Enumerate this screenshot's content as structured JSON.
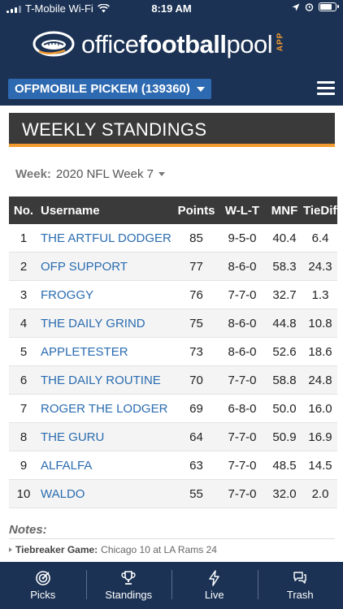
{
  "status": {
    "carrier": "T-Mobile Wi-Fi",
    "time": "8:19 AM",
    "battery_level": 0.85
  },
  "header": {
    "logo_prefix": "office",
    "logo_bold": "football",
    "logo_suffix": "pool",
    "logo_badge": "APP",
    "pool_selector": "OFPMOBILE PICKEM (139360)",
    "menu_icon": "hamburger-icon"
  },
  "section_title": "WEEKLY STANDINGS",
  "week_filter": {
    "label": "Week:",
    "value": "2020 NFL Week 7"
  },
  "table": {
    "headers": {
      "no": "No.",
      "username": "Username",
      "points": "Points",
      "wlt": "W-L-T",
      "mnf": "MNF",
      "tie": "TieDiff"
    },
    "rows": [
      {
        "no": "1",
        "username": "THE ARTFUL DODGER",
        "points": "85",
        "wlt": "9-5-0",
        "mnf": "40.4",
        "tie": "6.4"
      },
      {
        "no": "2",
        "username": "OFP SUPPORT",
        "points": "77",
        "wlt": "8-6-0",
        "mnf": "58.3",
        "tie": "24.3"
      },
      {
        "no": "3",
        "username": "FROGGY",
        "points": "76",
        "wlt": "7-7-0",
        "mnf": "32.7",
        "tie": "1.3"
      },
      {
        "no": "4",
        "username": "THE DAILY GRIND",
        "points": "75",
        "wlt": "8-6-0",
        "mnf": "44.8",
        "tie": "10.8"
      },
      {
        "no": "5",
        "username": "APPLETESTER",
        "points": "73",
        "wlt": "8-6-0",
        "mnf": "52.6",
        "tie": "18.6"
      },
      {
        "no": "6",
        "username": "THE DAILY ROUTINE",
        "points": "70",
        "wlt": "7-7-0",
        "mnf": "58.8",
        "tie": "24.8"
      },
      {
        "no": "7",
        "username": "ROGER THE LODGER",
        "points": "69",
        "wlt": "6-8-0",
        "mnf": "50.0",
        "tie": "16.0"
      },
      {
        "no": "8",
        "username": "THE GURU",
        "points": "64",
        "wlt": "7-7-0",
        "mnf": "50.9",
        "tie": "16.9"
      },
      {
        "no": "9",
        "username": "ALFALFA",
        "points": "63",
        "wlt": "7-7-0",
        "mnf": "48.5",
        "tie": "14.5"
      },
      {
        "no": "10",
        "username": "WALDO",
        "points": "55",
        "wlt": "7-7-0",
        "mnf": "32.0",
        "tie": "2.0"
      }
    ]
  },
  "notes": {
    "title": "Notes:",
    "tiebreaker_label": "Tiebreaker Game:",
    "tiebreaker_value": "Chicago 10 at LA Rams 24"
  },
  "tabs": [
    {
      "label": "Picks",
      "icon": "target-icon"
    },
    {
      "label": "Standings",
      "icon": "trophy-icon"
    },
    {
      "label": "Live",
      "icon": "lightning-icon"
    },
    {
      "label": "Trash",
      "icon": "chat-icon"
    }
  ],
  "colors": {
    "navy": "#1b3254",
    "accent": "#f29a2e",
    "link": "#2a6cb0",
    "selector": "#2d6ab1"
  }
}
